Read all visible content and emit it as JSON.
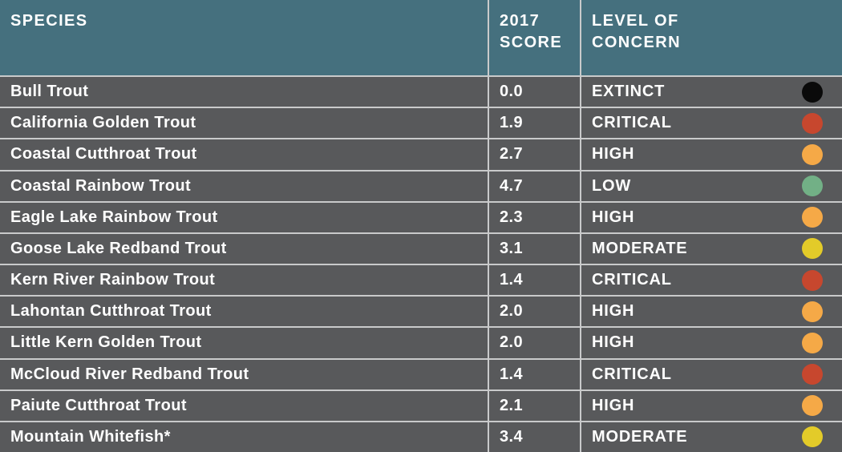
{
  "colors": {
    "header_bg": "#45707E",
    "row_bg": "#58595B",
    "divider": "#C9CACB",
    "text": "#FFFFFF",
    "dot_extinct": "#0A0A0A",
    "dot_critical": "#C7472E",
    "dot_high": "#F5A947",
    "dot_low": "#72B086",
    "dot_moderate": "#E3CB29"
  },
  "header": {
    "species": "SPECIES",
    "score": "2017 SCORE",
    "concern": "LEVEL OF CONCERN"
  },
  "chart_data": {
    "type": "table",
    "columns": [
      "SPECIES",
      "2017 SCORE",
      "LEVEL OF CONCERN"
    ],
    "concern_color_map": {
      "EXTINCT": "#0A0A0A",
      "CRITICAL": "#C7472E",
      "HIGH": "#F5A947",
      "MODERATE": "#E3CB29",
      "LOW": "#72B086"
    },
    "rows": [
      {
        "species": "Bull Trout",
        "score": "0.0",
        "level": "EXTINCT",
        "dot_color": "#0A0A0A"
      },
      {
        "species": "California Golden Trout",
        "score": "1.9",
        "level": "CRITICAL",
        "dot_color": "#C7472E"
      },
      {
        "species": "Coastal Cutthroat Trout",
        "score": "2.7",
        "level": "HIGH",
        "dot_color": "#F5A947"
      },
      {
        "species": "Coastal Rainbow Trout",
        "score": "4.7",
        "level": "LOW",
        "dot_color": "#72B086"
      },
      {
        "species": "Eagle Lake Rainbow Trout",
        "score": "2.3",
        "level": "HIGH",
        "dot_color": "#F5A947"
      },
      {
        "species": "Goose Lake Redband Trout",
        "score": "3.1",
        "level": "MODERATE",
        "dot_color": "#E3CB29"
      },
      {
        "species": "Kern River Rainbow Trout",
        "score": "1.4",
        "level": "CRITICAL",
        "dot_color": "#C7472E"
      },
      {
        "species": "Lahontan Cutthroat Trout",
        "score": "2.0",
        "level": "HIGH",
        "dot_color": "#F5A947"
      },
      {
        "species": "Little Kern Golden Trout",
        "score": "2.0",
        "level": "HIGH",
        "dot_color": "#F5A947"
      },
      {
        "species": "McCloud River Redband Trout",
        "score": "1.4",
        "level": "CRITICAL",
        "dot_color": "#C7472E"
      },
      {
        "species": "Paiute Cutthroat Trout",
        "score": "2.1",
        "level": "HIGH",
        "dot_color": "#F5A947"
      },
      {
        "species": "Mountain Whitefish*",
        "score": "3.4",
        "level": "MODERATE",
        "dot_color": "#E3CB29"
      }
    ]
  }
}
